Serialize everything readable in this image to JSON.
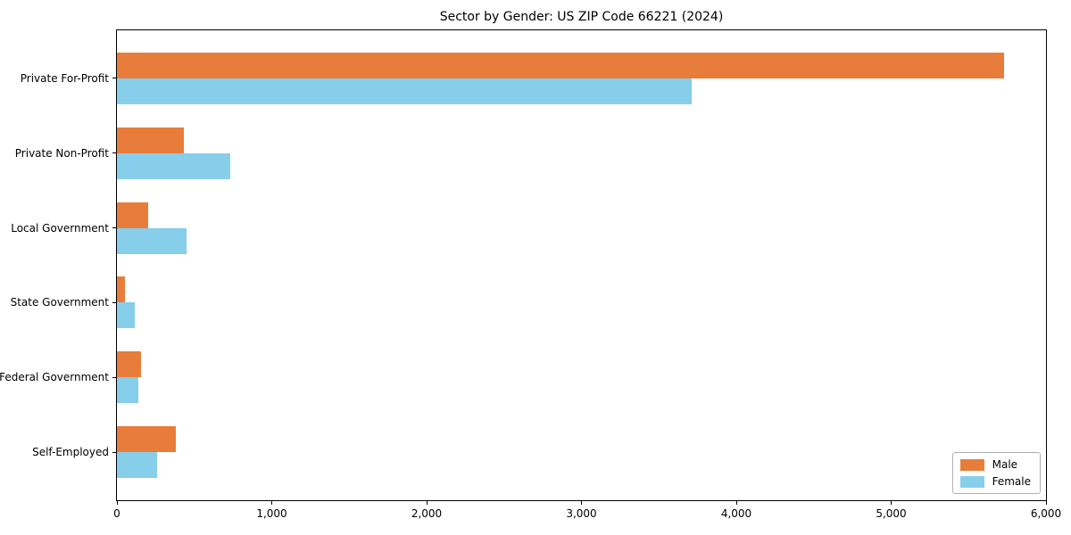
{
  "chart_data": {
    "type": "bar",
    "orientation": "horizontal",
    "title": "Sector by Gender: US ZIP Code 66221 (2024)",
    "categories": [
      "Private For-Profit",
      "Private Non-Profit",
      "Local Government",
      "State Government",
      "Federal Government",
      "Self-Employed"
    ],
    "series": [
      {
        "name": "Male",
        "color": "#E87D3B",
        "values": [
          5730,
          430,
          200,
          50,
          155,
          380
        ]
      },
      {
        "name": "Female",
        "color": "#87CEEB",
        "values": [
          3710,
          730,
          450,
          115,
          140,
          260
        ]
      }
    ],
    "xlabel": "",
    "ylabel": "",
    "xlim": [
      0,
      6000
    ],
    "xticks": [
      0,
      1000,
      2000,
      3000,
      4000,
      5000,
      6000
    ],
    "xtick_labels": [
      "0",
      "1,000",
      "2,000",
      "3,000",
      "4,000",
      "5,000",
      "6,000"
    ],
    "legend_position": "lower right",
    "grid": false,
    "plot_border_color": "#000000",
    "background_color": "#ffffff"
  }
}
